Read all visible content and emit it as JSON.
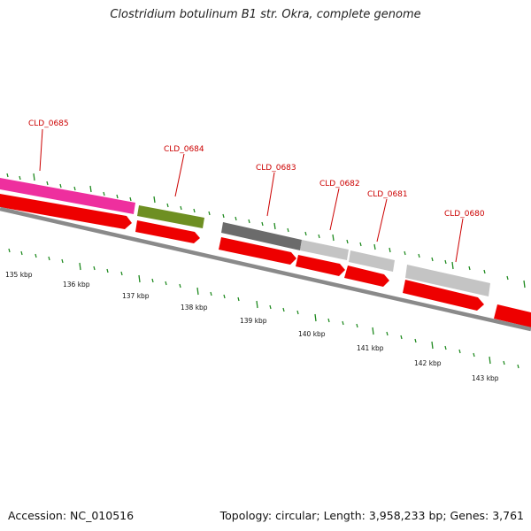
{
  "title": "Clostridium botulinum B1 str. Okra, complete genome",
  "footer": {
    "accession": "Accession: NC_010516",
    "summary": "Topology: circular; Length: 3,958,233 bp; Genes: 3,761"
  },
  "colors": {
    "cds": "#ee0000",
    "pink_feature": "#ee2f9e",
    "olive_feature": "#6e8f22",
    "dark_gray_feature": "#6b6b6b",
    "light_gray_feature": "#c4c4c4",
    "backbone": "#8a8a8a",
    "ticks": "#1f8a1f",
    "label_text": "#cc0000"
  },
  "ruler": {
    "ticks_kbp": [
      135,
      136,
      137,
      138,
      139,
      140,
      141,
      142,
      143
    ],
    "labels": [
      "135 kbp",
      "136 kbp",
      "137 kbp",
      "138 kbp",
      "139 kbp",
      "140 kbp",
      "141 kbp",
      "142 kbp",
      "143 kbp"
    ]
  },
  "genes": [
    {
      "id": "CLD_0685",
      "feature": "pink"
    },
    {
      "id": "CLD_0684",
      "feature": "olive"
    },
    {
      "id": "CLD_0683",
      "feature": "dark-gray"
    },
    {
      "id": "CLD_0682",
      "feature": "light-gray"
    },
    {
      "id": "CLD_0681",
      "feature": "light-gray"
    },
    {
      "id": "CLD_0680",
      "feature": "light-gray"
    }
  ]
}
